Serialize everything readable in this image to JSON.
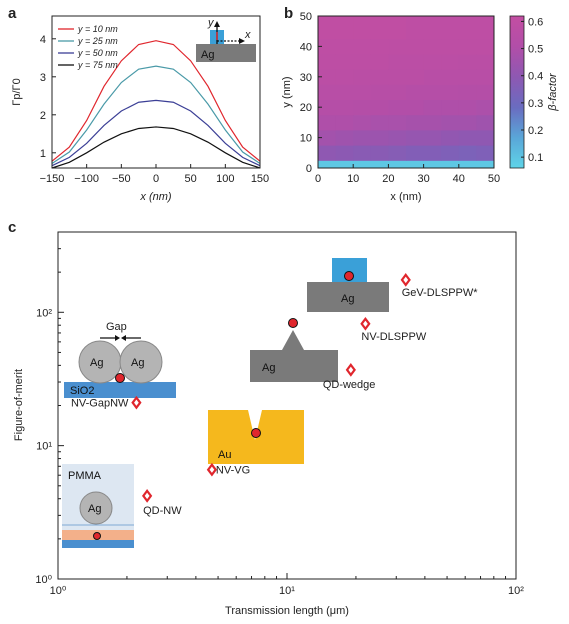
{
  "panels": {
    "a": "a",
    "b": "b",
    "c": "c"
  },
  "chart_data": [
    {
      "type": "line",
      "panel": "a",
      "xlabel": "x (nm)",
      "ylabel": "Γp/Γ0",
      "xlim": [
        -150,
        150
      ],
      "ylim": [
        0.6,
        4.6
      ],
      "xticks": [
        -150,
        -100,
        -50,
        0,
        50,
        100,
        150
      ],
      "yticks": [
        1,
        2,
        3,
        4
      ],
      "x": [
        -150,
        -125,
        -100,
        -75,
        -50,
        -25,
        0,
        25,
        50,
        75,
        100,
        125,
        150
      ],
      "series": [
        {
          "name": "y = 10 nm",
          "color": "#e0262d",
          "values": [
            0.78,
            1.15,
            1.85,
            2.75,
            3.42,
            3.85,
            3.95,
            3.85,
            3.42,
            2.75,
            1.85,
            1.15,
            0.78
          ]
        },
        {
          "name": "y = 25 nm",
          "color": "#4a9aa8",
          "values": [
            0.72,
            1.02,
            1.6,
            2.28,
            2.85,
            3.2,
            3.28,
            3.2,
            2.85,
            2.28,
            1.6,
            1.02,
            0.72
          ]
        },
        {
          "name": "y = 50 nm",
          "color": "#3b3f96",
          "values": [
            0.66,
            0.88,
            1.25,
            1.72,
            2.1,
            2.33,
            2.38,
            2.33,
            2.1,
            1.72,
            1.25,
            0.88,
            0.66
          ]
        },
        {
          "name": "y = 75 nm",
          "color": "#111111",
          "values": [
            0.6,
            0.75,
            1.0,
            1.28,
            1.5,
            1.64,
            1.68,
            1.64,
            1.5,
            1.28,
            1.0,
            0.75,
            0.6
          ]
        }
      ],
      "inset": {
        "metal": "Ag",
        "y_axis": "y",
        "x_axis": "x",
        "fill": "#7a7a7a",
        "accent": "#3aa0d8"
      }
    },
    {
      "type": "heatmap",
      "panel": "b",
      "xlabel": "x (nm)",
      "ylabel": "y (nm)",
      "xlim": [
        0,
        50
      ],
      "ylim": [
        0,
        50
      ],
      "xticks": [
        0,
        10,
        20,
        30,
        40,
        50
      ],
      "yticks": [
        0,
        10,
        20,
        30,
        40,
        50
      ],
      "colorbar_label": "β-factor",
      "colorbar_ticks": [
        0.1,
        0.2,
        0.3,
        0.4,
        0.5,
        0.6
      ],
      "colorbar_range": [
        0.06,
        0.62
      ],
      "colormap": [
        "#5fd4e8",
        "#5aa6d8",
        "#6a6cc0",
        "#8e58b2",
        "#b24ea8",
        "#c34ea2"
      ],
      "rows_y": [
        1,
        5,
        10,
        15,
        20,
        25,
        30,
        35,
        40,
        45
      ],
      "cols_x": [
        2.5,
        7.5,
        12.5,
        17.5,
        22.5,
        27.5,
        32.5,
        37.5,
        42.5,
        47.5
      ],
      "values": [
        [
          0.09,
          0.09,
          0.09,
          0.09,
          0.09,
          0.09,
          0.09,
          0.09,
          0.09,
          0.09
        ],
        [
          0.4,
          0.39,
          0.38,
          0.38,
          0.37,
          0.36,
          0.36,
          0.35,
          0.34,
          0.35
        ],
        [
          0.46,
          0.45,
          0.44,
          0.44,
          0.43,
          0.42,
          0.42,
          0.41,
          0.4,
          0.4
        ],
        [
          0.5,
          0.5,
          0.49,
          0.48,
          0.48,
          0.47,
          0.47,
          0.46,
          0.46,
          0.45
        ],
        [
          0.53,
          0.53,
          0.52,
          0.52,
          0.51,
          0.51,
          0.5,
          0.5,
          0.5,
          0.49
        ],
        [
          0.55,
          0.55,
          0.55,
          0.54,
          0.54,
          0.53,
          0.53,
          0.53,
          0.52,
          0.52
        ],
        [
          0.57,
          0.57,
          0.56,
          0.56,
          0.56,
          0.56,
          0.55,
          0.55,
          0.55,
          0.55
        ],
        [
          0.58,
          0.58,
          0.58,
          0.58,
          0.57,
          0.57,
          0.57,
          0.57,
          0.56,
          0.56
        ],
        [
          0.59,
          0.59,
          0.59,
          0.59,
          0.58,
          0.58,
          0.58,
          0.58,
          0.58,
          0.58
        ],
        [
          0.6,
          0.6,
          0.6,
          0.6,
          0.6,
          0.59,
          0.59,
          0.59,
          0.59,
          0.59
        ]
      ]
    },
    {
      "type": "scatter",
      "panel": "c",
      "xlabel": "Transmission length (μm)",
      "ylabel": "Figure-of-merit",
      "x_scale": "log",
      "y_scale": "log",
      "xlim": [
        1,
        100
      ],
      "ylim": [
        1,
        400
      ],
      "xticks": [
        {
          "v": 1,
          "label": "10⁰"
        },
        {
          "v": 10,
          "label": "10¹"
        },
        {
          "v": 100,
          "label": "10²"
        }
      ],
      "yticks": [
        {
          "v": 1,
          "label": "10⁰"
        },
        {
          "v": 10,
          "label": "10¹"
        },
        {
          "v": 100,
          "label": "10²"
        }
      ],
      "marker_color": "#e0262d",
      "points": [
        {
          "name": "GeV-DLSPPW*",
          "x": 33,
          "y": 175
        },
        {
          "name": "NV-DLSPPW",
          "x": 22,
          "y": 82
        },
        {
          "name": "QD-wedge",
          "x": 19,
          "y": 37
        },
        {
          "name": "NV-GapNW",
          "x": 2.2,
          "y": 21
        },
        {
          "name": "NV-VG",
          "x": 4.7,
          "y": 6.6
        },
        {
          "name": "QD-NW",
          "x": 2.45,
          "y": 4.2
        }
      ],
      "insets": {
        "dlsppw": {
          "metal": "Ag"
        },
        "wedge": {
          "metal": "Ag"
        },
        "gapnw": {
          "metal": "Ag",
          "substrate": "SiO2",
          "gap": "Gap"
        },
        "vgroove": {
          "metal": "Au"
        },
        "nw": {
          "metal": "Ag",
          "cladding": "PMMA"
        }
      }
    }
  ]
}
